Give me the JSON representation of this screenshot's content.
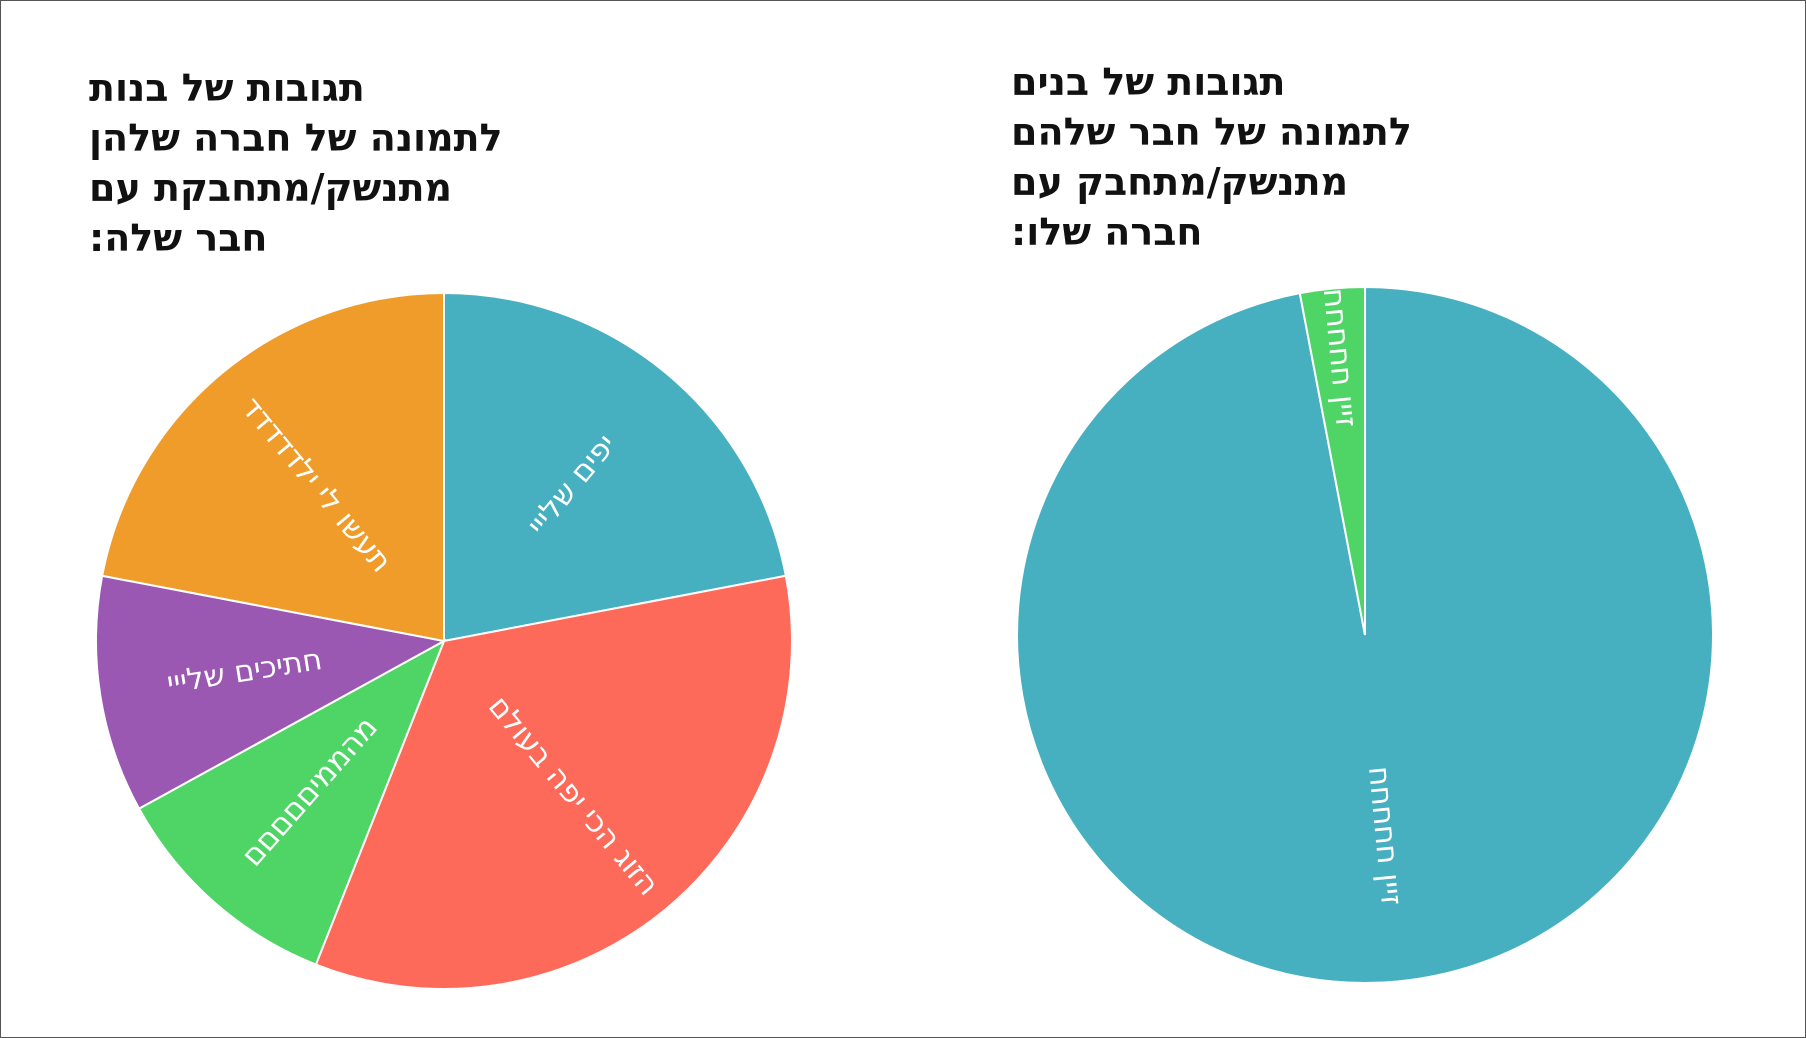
{
  "chart_data": [
    {
      "type": "pie",
      "title": [
        "תגובות של בנות",
        "לתמונה של חברה שלהן",
        "מתנשק/מתחבקת עם",
        "חבר שלה:"
      ],
      "categories": [
        "יפים שלייי",
        "הזוג הכי יפה בעולם",
        "מהממיםםםםם",
        "חתיכים שלייי",
        "תעשו לי ילדדדדד"
      ],
      "values": [
        22,
        34,
        11,
        11,
        22
      ],
      "colors": [
        "#47b0c0",
        "#fe6a59",
        "#4fd466",
        "#9a58b3",
        "#f09c2a"
      ]
    },
    {
      "type": "pie",
      "title": [
        "תגובות של בנים",
        "לתמונה של חבר שלהם",
        "מתנשק/מתחבק עם",
        "חברה שלו:"
      ],
      "categories": [
        "זיין חחחחח",
        "זיין חחחחח"
      ],
      "values": [
        97,
        3
      ],
      "colors": [
        "#47b0c0",
        "#4fd466"
      ]
    }
  ]
}
